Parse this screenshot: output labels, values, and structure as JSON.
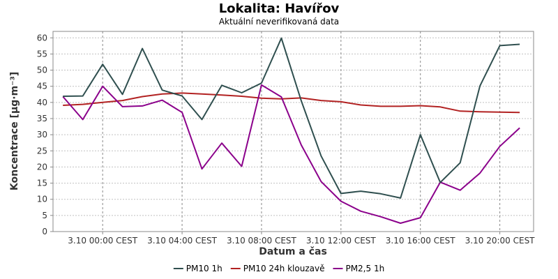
{
  "chart_data": {
    "type": "line",
    "title": "Lokalita: Havířov",
    "subtitle": "Aktuální neverifikovaná data",
    "xlabel": "Datum a čas",
    "ylabel": "Koncentrace [µg·m⁻³]",
    "ylim": [
      0,
      62
    ],
    "yticks": [
      0,
      5,
      10,
      15,
      20,
      25,
      30,
      35,
      40,
      45,
      50,
      55,
      60
    ],
    "x_hours": [
      -2,
      -1,
      0,
      1,
      2,
      3,
      4,
      5,
      6,
      7,
      8,
      9,
      10,
      11,
      12,
      13,
      14,
      15,
      16,
      17,
      18,
      19,
      20,
      21
    ],
    "xlim_hours": [
      -2.5,
      21.7
    ],
    "xticks": [
      {
        "hour": 0,
        "label": "3.10 00:00 CEST"
      },
      {
        "hour": 4,
        "label": "3.10 04:00 CEST"
      },
      {
        "hour": 8,
        "label": "3.10 08:00 CEST"
      },
      {
        "hour": 12,
        "label": "3.10 12:00 CEST"
      },
      {
        "hour": 16,
        "label": "3.10 16:00 CEST"
      },
      {
        "hour": 20,
        "label": "3.10 20:00 CEST"
      }
    ],
    "grid": true,
    "legend_position": "bottom",
    "series": [
      {
        "name": "PM10 1h",
        "color": "#2f4f4f",
        "values": [
          41.9,
          42.0,
          51.8,
          42.5,
          56.7,
          43.8,
          42.0,
          34.7,
          45.3,
          43.0,
          46.0,
          59.9,
          40.5,
          23.4,
          11.8,
          12.5,
          11.7,
          10.4,
          30.0,
          15.2,
          21.3,
          45.1,
          57.6,
          58.0
        ]
      },
      {
        "name": "PM10 24h klouzavě",
        "color": "#b22222",
        "values": [
          39.1,
          39.4,
          40.0,
          40.6,
          41.8,
          42.6,
          42.9,
          42.6,
          42.3,
          41.9,
          41.3,
          41.1,
          41.4,
          40.6,
          40.2,
          39.2,
          38.8,
          38.8,
          39.0,
          38.6,
          37.3,
          37.1,
          37.0,
          36.9
        ]
      },
      {
        "name": "PM2,5 1h",
        "color": "#8b008b",
        "values": [
          41.8,
          34.7,
          45.0,
          38.7,
          38.9,
          40.7,
          36.9,
          19.4,
          27.4,
          20.2,
          45.4,
          41.7,
          26.8,
          15.5,
          9.4,
          6.3,
          4.6,
          2.6,
          4.3,
          15.3,
          12.8,
          18.1,
          26.4,
          32.1
        ]
      }
    ]
  }
}
